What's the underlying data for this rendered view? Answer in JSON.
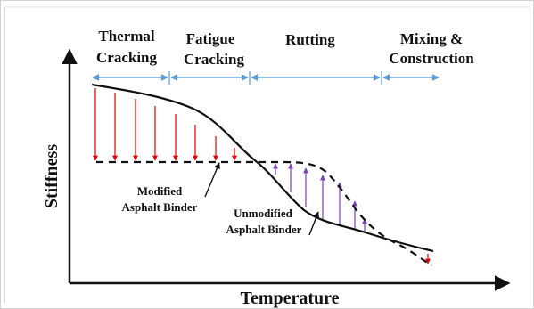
{
  "phases": [
    {
      "line1": "Thermal",
      "line2": "Cracking"
    },
    {
      "line1": "Fatigue",
      "line2": "Cracking"
    },
    {
      "line1": "Rutting",
      "line2": ""
    },
    {
      "line1": "Mixing &",
      "line2": "Construction"
    }
  ],
  "axes": {
    "y_label": "Stiffness",
    "x_label": "Temperature"
  },
  "curves": {
    "modified": {
      "line1": "Modified",
      "line2": "Asphalt Binder"
    },
    "unmodified": {
      "line1": "Unmodified",
      "line2": "Asphalt Binder"
    }
  },
  "colors": {
    "curve": "#111111",
    "phase_arrow": "#5b9bd5",
    "down_arrow": "#e00000",
    "up_arrow": "#7b3fb8",
    "frame_border": "#cfcfcf"
  }
}
